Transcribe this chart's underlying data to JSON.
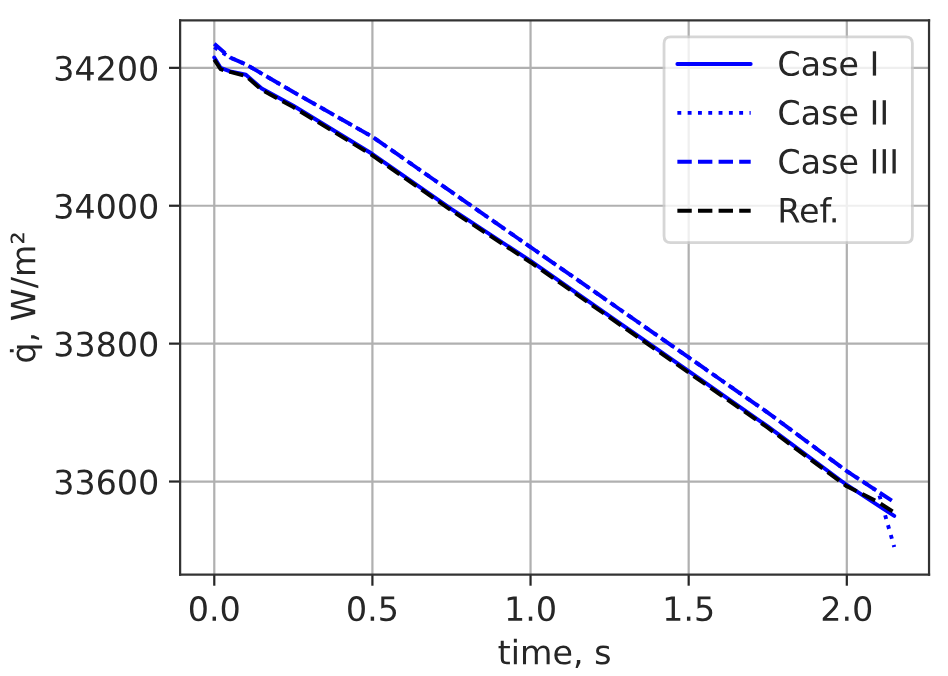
{
  "chart_data": {
    "type": "line",
    "xlabel": "time, s",
    "ylabel": "q̇, W/m²",
    "xlim": [
      -0.108,
      2.26
    ],
    "ylim": [
      33465,
      34269
    ],
    "xticks": [
      {
        "value": 0,
        "label": "0.0"
      },
      {
        "value": 0.5,
        "label": "0.5"
      },
      {
        "value": 1,
        "label": "1.0"
      },
      {
        "value": 1.5,
        "label": "1.5"
      },
      {
        "value": 2,
        "label": "2.0"
      }
    ],
    "yticks": [
      33600,
      33800,
      34000,
      34200
    ],
    "grid": true,
    "legend": "top right",
    "series": [
      {
        "name": "Case I",
        "color": "#0000ff",
        "line_style": "solid",
        "x": [
          0,
          0.02,
          0.05,
          0.1,
          0.15,
          0.25,
          0.5,
          0.75,
          1.0,
          1.25,
          1.5,
          1.75,
          2.0,
          2.1,
          2.15
        ],
        "values": [
          34215,
          34200,
          34195,
          34190,
          34170,
          34145,
          34075,
          33995,
          33920,
          33840,
          33760,
          33680,
          33595,
          33565,
          33550
        ]
      },
      {
        "name": "Case II",
        "color": "#0000ff",
        "line_style": "dotted",
        "x": [
          0,
          0.05,
          0.1,
          0.25,
          0.5,
          0.75,
          1.0,
          1.25,
          1.5,
          1.75,
          2.0,
          2.1,
          2.15
        ],
        "values": [
          34230,
          34215,
          34205,
          34165,
          34100,
          34020,
          33940,
          33860,
          33780,
          33700,
          33615,
          33585,
          33505
        ]
      },
      {
        "name": "Case III",
        "color": "#0000ff",
        "line_style": "dashed",
        "x": [
          0,
          0.05,
          0.1,
          0.25,
          0.5,
          0.75,
          1.0,
          1.25,
          1.5,
          1.75,
          2.0,
          2.1,
          2.15
        ],
        "values": [
          34235,
          34215,
          34205,
          34165,
          34100,
          34020,
          33940,
          33860,
          33780,
          33700,
          33615,
          33585,
          33570
        ]
      },
      {
        "name": "Ref.",
        "color": "#000000",
        "line_style": "dashed",
        "x": [
          0,
          0.02,
          0.05,
          0.1,
          0.15,
          0.25,
          0.5,
          0.75,
          1.0,
          1.25,
          1.5,
          1.75,
          2.0,
          2.1,
          2.15
        ],
        "values": [
          34212,
          34198,
          34194,
          34188,
          34168,
          34143,
          34073,
          33993,
          33918,
          33838,
          33758,
          33678,
          33593,
          33570,
          33555
        ]
      }
    ]
  }
}
